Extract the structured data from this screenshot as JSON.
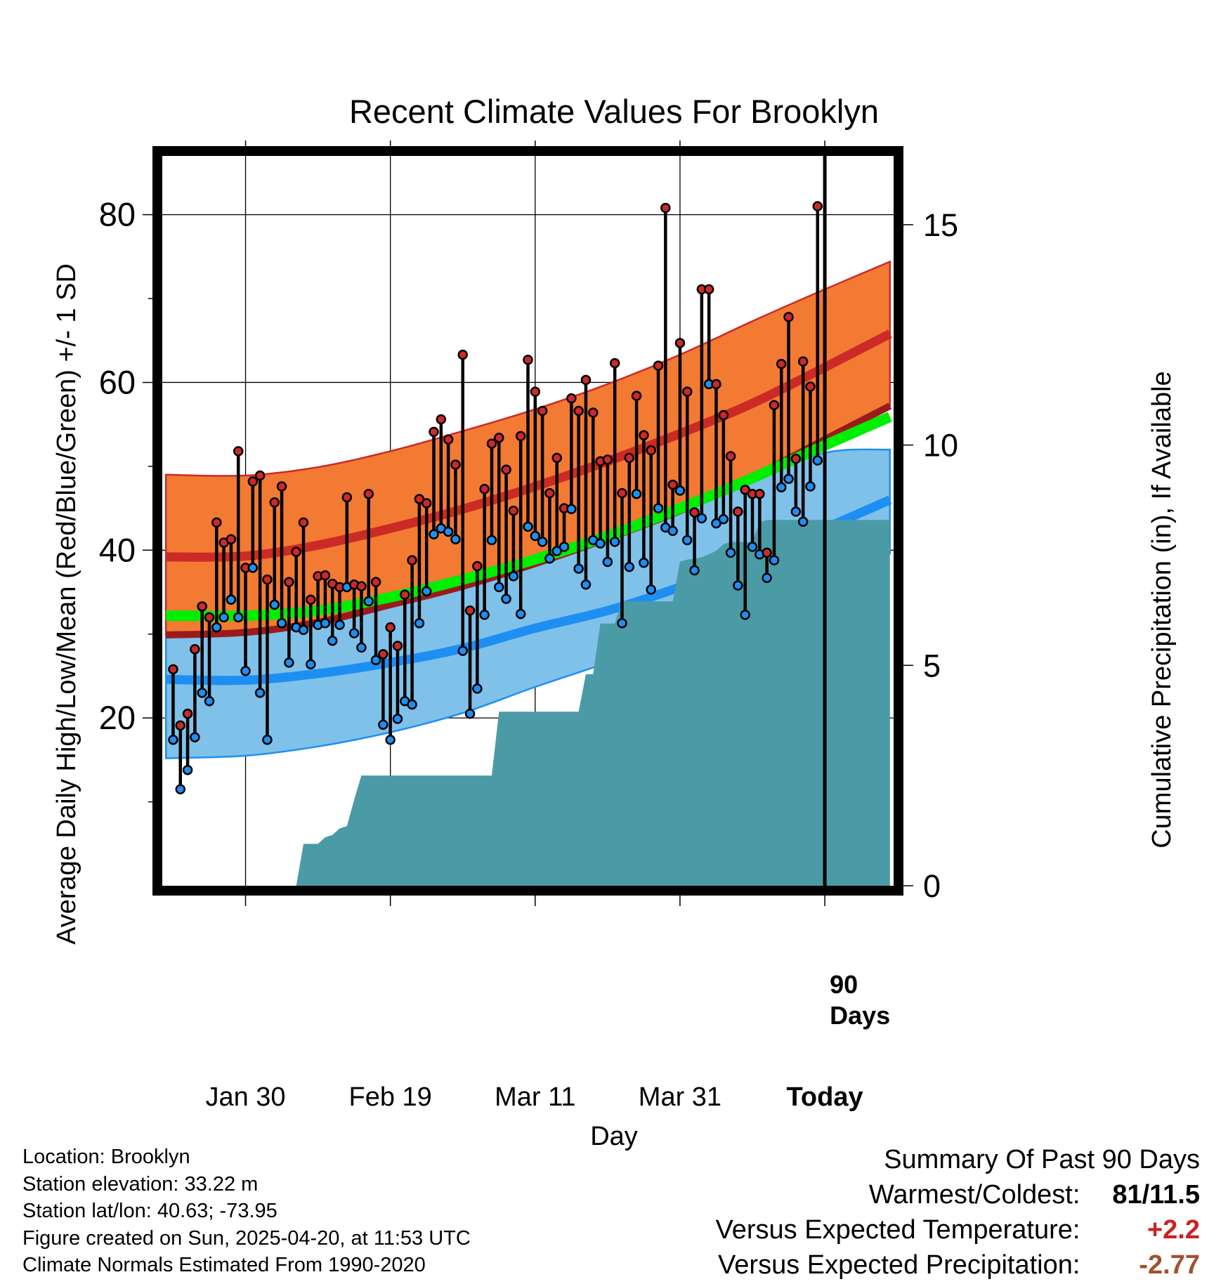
{
  "colors": {
    "high_line": "#CC2A27",
    "low_line": "#1E8FF2",
    "mean_line": "#00EE00",
    "high_band": "#F37A33",
    "low_band": "#7FC1E9",
    "precip": "#4A9BA5",
    "dark_red": "#9B1B1B",
    "warm_text": "#CC2222",
    "dry_text": "#A0522D"
  },
  "chart_data": {
    "type": "line",
    "title": "Recent Climate Values For Brooklyn",
    "xlabel": "Day",
    "ylabel": "Average Daily High/Low/Mean (Red/Blue/Green) +/- 1 SD",
    "y2label": "Cumulative Precipitation (in), If Available",
    "xlim": [
      -11.5,
      89.5
    ],
    "ylim": [
      0,
      87
    ],
    "y2lim": [
      0,
      16.56
    ],
    "x_ticks": [
      {
        "x": 0,
        "label": "Jan 30"
      },
      {
        "x": 20,
        "label": "Feb 19"
      },
      {
        "x": 40,
        "label": "Mar 11"
      },
      {
        "x": 60,
        "label": "Mar 31"
      },
      {
        "x": 80,
        "label": "Today"
      }
    ],
    "y_major_ticks": [
      20,
      40,
      60,
      80
    ],
    "y_minor_ticks": [
      10,
      30,
      50,
      70
    ],
    "y2_ticks": [
      0,
      5,
      10,
      15
    ],
    "grid": true,
    "today_x": 80,
    "today_label": [
      "90",
      "Days"
    ],
    "normals": {
      "x": [
        -11,
        0,
        10,
        20,
        30,
        40,
        50,
        60,
        70,
        80,
        89
      ],
      "high": [
        39.2,
        39.3,
        40.6,
        42.6,
        44.9,
        47.6,
        50.6,
        53.9,
        57.5,
        61.8,
        65.8
      ],
      "high_upper": [
        49.0,
        48.9,
        49.9,
        51.8,
        54.2,
        56.8,
        59.8,
        63.3,
        67.3,
        71.1,
        74.4
      ],
      "high_lower": [
        29.9,
        30.2,
        31.4,
        33.5,
        35.7,
        38.4,
        41.4,
        44.7,
        48.7,
        53.2,
        57.2
      ],
      "mean": [
        32.2,
        32.2,
        32.8,
        34.4,
        36.5,
        38.9,
        41.7,
        45.0,
        48.6,
        52.5,
        55.9
      ],
      "low": [
        24.6,
        24.5,
        25.3,
        26.6,
        28.3,
        30.7,
        32.8,
        35.6,
        39.0,
        42.6,
        46.0
      ],
      "low_upper": [
        33.8,
        33.4,
        33.9,
        35.1,
        37.0,
        39.3,
        41.9,
        44.8,
        48.2,
        51.6,
        52.0
      ],
      "low_lower": [
        15.2,
        15.5,
        16.6,
        18.3,
        20.6,
        23.7,
        26.6,
        29.8,
        33.2,
        36.1,
        39.6
      ]
    },
    "daily": [
      {
        "x": -10,
        "high": 25.8,
        "low": 17.4
      },
      {
        "x": -9,
        "high": 19.1,
        "low": 11.5
      },
      {
        "x": -8,
        "high": 20.5,
        "low": 13.8
      },
      {
        "x": -7,
        "high": 28.2,
        "low": 17.7
      },
      {
        "x": -6,
        "high": 33.3,
        "low": 23.0
      },
      {
        "x": -5,
        "high": 32.0,
        "low": 22.0
      },
      {
        "x": -4,
        "high": 43.3,
        "low": 30.8
      },
      {
        "x": -3,
        "high": 40.9,
        "low": 32.0
      },
      {
        "x": -2,
        "high": 41.3,
        "low": 34.1
      },
      {
        "x": -1,
        "high": 51.8,
        "low": 32.0
      },
      {
        "x": 0,
        "high": 37.9,
        "low": 25.6
      },
      {
        "x": 1,
        "high": 48.2,
        "low": 37.9
      },
      {
        "x": 2,
        "high": 48.9,
        "low": 23.0
      },
      {
        "x": 3,
        "high": 36.5,
        "low": 17.4
      },
      {
        "x": 4,
        "high": 45.7,
        "low": 33.5
      },
      {
        "x": 5,
        "high": 47.6,
        "low": 31.3
      },
      {
        "x": 6,
        "high": 36.2,
        "low": 26.6
      },
      {
        "x": 7,
        "high": 39.8,
        "low": 30.8
      },
      {
        "x": 8,
        "high": 43.3,
        "low": 30.5
      },
      {
        "x": 9,
        "high": 34.1,
        "low": 26.4
      },
      {
        "x": 10,
        "high": 36.9,
        "low": 31.1
      },
      {
        "x": 11,
        "high": 37.0,
        "low": 31.3
      },
      {
        "x": 12,
        "high": 36.0,
        "low": 29.2
      },
      {
        "x": 13,
        "high": 35.6,
        "low": 31.1
      },
      {
        "x": 14,
        "high": 46.3,
        "low": 35.6
      },
      {
        "x": 15,
        "high": 35.9,
        "low": 30.1
      },
      {
        "x": 16,
        "high": 35.7,
        "low": 28.4
      },
      {
        "x": 17,
        "high": 46.7,
        "low": 33.9
      },
      {
        "x": 18,
        "high": 36.2,
        "low": 26.9
      },
      {
        "x": 19,
        "high": 27.6,
        "low": 19.2
      },
      {
        "x": 20,
        "high": 30.8,
        "low": 17.4
      },
      {
        "x": 21,
        "high": 28.6,
        "low": 19.9
      },
      {
        "x": 22,
        "high": 34.7,
        "low": 22.0
      },
      {
        "x": 23,
        "high": 38.8,
        "low": 21.6
      },
      {
        "x": 24,
        "high": 46.1,
        "low": 31.3
      },
      {
        "x": 25,
        "high": 45.6,
        "low": 35.1
      },
      {
        "x": 26,
        "high": 54.1,
        "low": 41.9
      },
      {
        "x": 27,
        "high": 55.6,
        "low": 42.6
      },
      {
        "x": 28,
        "high": 53.2,
        "low": 42.2
      },
      {
        "x": 29,
        "high": 50.2,
        "low": 41.3
      },
      {
        "x": 30,
        "high": 63.3,
        "low": 28.0
      },
      {
        "x": 31,
        "high": 32.8,
        "low": 20.5
      },
      {
        "x": 32,
        "high": 38.1,
        "low": 23.5
      },
      {
        "x": 33,
        "high": 47.3,
        "low": 32.3
      },
      {
        "x": 34,
        "high": 52.7,
        "low": 41.2
      },
      {
        "x": 35,
        "high": 53.4,
        "low": 35.6
      },
      {
        "x": 36,
        "high": 49.6,
        "low": 34.2
      },
      {
        "x": 37,
        "high": 44.7,
        "low": 36.9
      },
      {
        "x": 38,
        "high": 53.6,
        "low": 32.4
      },
      {
        "x": 39,
        "high": 62.7,
        "low": 42.8
      },
      {
        "x": 40,
        "high": 58.9,
        "low": 41.7
      },
      {
        "x": 41,
        "high": 56.6,
        "low": 41.0
      },
      {
        "x": 42,
        "high": 46.8,
        "low": 39.0
      },
      {
        "x": 43,
        "high": 51.0,
        "low": 39.9
      },
      {
        "x": 44,
        "high": 45.0,
        "low": 40.4
      },
      {
        "x": 45,
        "high": 58.1,
        "low": 44.9
      },
      {
        "x": 46,
        "high": 56.6,
        "low": 37.8
      },
      {
        "x": 47,
        "high": 60.3,
        "low": 35.9
      },
      {
        "x": 48,
        "high": 56.4,
        "low": 41.2
      },
      {
        "x": 49,
        "high": 50.6,
        "low": 40.8
      },
      {
        "x": 50,
        "high": 50.8,
        "low": 38.6
      },
      {
        "x": 51,
        "high": 62.3,
        "low": 41.0
      },
      {
        "x": 52,
        "high": 46.8,
        "low": 31.3
      },
      {
        "x": 53,
        "high": 51.0,
        "low": 38.0
      },
      {
        "x": 54,
        "high": 58.4,
        "low": 46.7
      },
      {
        "x": 55,
        "high": 53.7,
        "low": 38.5
      },
      {
        "x": 56,
        "high": 51.9,
        "low": 35.3
      },
      {
        "x": 57,
        "high": 62.0,
        "low": 45.0
      },
      {
        "x": 58,
        "high": 80.8,
        "low": 42.7
      },
      {
        "x": 59,
        "high": 47.8,
        "low": 42.3
      },
      {
        "x": 60,
        "high": 64.7,
        "low": 47.1
      },
      {
        "x": 61,
        "high": 58.9,
        "low": 41.2
      },
      {
        "x": 62,
        "high": 44.5,
        "low": 37.6
      },
      {
        "x": 63,
        "high": 71.1,
        "low": 43.8
      },
      {
        "x": 64,
        "high": 71.1,
        "low": 59.8
      },
      {
        "x": 65,
        "high": 59.8,
        "low": 43.2
      },
      {
        "x": 66,
        "high": 56.1,
        "low": 43.7
      },
      {
        "x": 67,
        "high": 51.2,
        "low": 39.7
      },
      {
        "x": 68,
        "high": 44.6,
        "low": 35.8
      },
      {
        "x": 69,
        "high": 47.2,
        "low": 32.3
      },
      {
        "x": 70,
        "high": 46.7,
        "low": 40.4
      },
      {
        "x": 71,
        "high": 46.7,
        "low": 39.5
      },
      {
        "x": 72,
        "high": 39.7,
        "low": 36.7
      },
      {
        "x": 73,
        "high": 57.3,
        "low": 38.8
      },
      {
        "x": 74,
        "high": 62.2,
        "low": 47.5
      },
      {
        "x": 75,
        "high": 67.8,
        "low": 48.5
      },
      {
        "x": 76,
        "high": 50.9,
        "low": 44.6
      },
      {
        "x": 77,
        "high": 62.5,
        "low": 43.4
      },
      {
        "x": 78,
        "high": 59.5,
        "low": 47.6
      },
      {
        "x": 79,
        "high": 81.0,
        "low": 50.7
      }
    ],
    "precipitation": {
      "x": [
        -11,
        7,
        8,
        10,
        11,
        12,
        13,
        14,
        15,
        16,
        17,
        18,
        34,
        35,
        46,
        47,
        48,
        49,
        51,
        52,
        53,
        59,
        60,
        61,
        63,
        65,
        66,
        67,
        68,
        70,
        71,
        72,
        89
      ],
      "cumulative": [
        0,
        0,
        0.95,
        0.95,
        1.1,
        1.15,
        1.3,
        1.35,
        1.95,
        2.5,
        2.5,
        2.5,
        2.5,
        3.95,
        3.95,
        4.8,
        4.8,
        5.95,
        5.95,
        6.45,
        6.45,
        6.45,
        7.35,
        7.4,
        7.45,
        7.6,
        7.75,
        7.8,
        7.8,
        7.8,
        8.25,
        8.3,
        8.3
      ]
    }
  },
  "info": {
    "location": "Location: Brooklyn",
    "elevation": "Station elevation: 33.22 m",
    "latlon": "Station lat/lon: 40.63; -73.95",
    "created": "Figure created on Sun, 2025-04-20, at 11:53 UTC",
    "normals": "Climate Normals Estimated From 1990-2020"
  },
  "summary": {
    "title": "Summary Of Past 90 Days",
    "warmest_label": "Warmest/Coldest:",
    "warmest_value": "81/11.5",
    "temp_label": "Versus Expected Temperature:",
    "temp_value": "+2.2",
    "precip_label": "Versus Expected Precipitation:",
    "precip_value": "-2.77"
  }
}
